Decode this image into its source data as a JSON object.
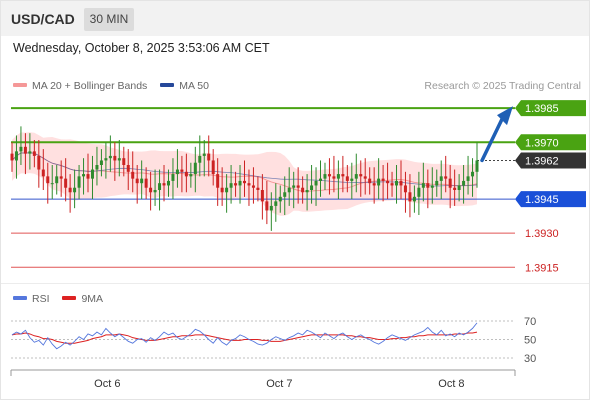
{
  "header": {
    "symbol": "USD/CAD",
    "interval": "30 MIN",
    "datetime": "Wednesday, October 8, 2025 3:53:06 AM CET"
  },
  "legend": {
    "ma20_label": "MA 20 + Bollinger Bands",
    "ma50_label": "MA 50",
    "source": "Research © 2025 Trading Central",
    "rsi_label": "RSI",
    "ma9_label": "9MA"
  },
  "colors": {
    "up": "#2e8b2e",
    "down": "#cc2222",
    "resistance": "#4aa312",
    "support_line": "#3355cc",
    "support_box": "#1a50d8",
    "minor": "#e05555",
    "price_box": "#333333",
    "bollinger": "#ffd6d6",
    "ma20": "#f59898",
    "ma50": "#26489a",
    "rsi": "#5577dd",
    "rsi_ma": "#dd2222",
    "arrow": "#1f5fb5"
  },
  "chart_data": [
    {
      "type": "candlestick",
      "title": "USD/CAD 30 MIN",
      "x_ticks": [
        "Oct 6",
        "Oct 7",
        "Oct 8"
      ],
      "current_price": 1.3962,
      "levels": [
        {
          "value": 1.3985,
          "label": "1.3985",
          "kind": "resistance"
        },
        {
          "value": 1.397,
          "label": "1.3970",
          "kind": "resistance"
        },
        {
          "value": 1.3962,
          "label": "1.3962",
          "kind": "price"
        },
        {
          "value": 1.3945,
          "label": "1.3945",
          "kind": "support"
        },
        {
          "value": 1.393,
          "label": "1.3930",
          "kind": "minor"
        },
        {
          "value": 1.3915,
          "label": "1.3915",
          "kind": "minor"
        }
      ],
      "close_series": [
        1.3962,
        1.3966,
        1.3968,
        1.3965,
        1.3966,
        1.3964,
        1.3958,
        1.3955,
        1.3952,
        1.3952,
        1.3955,
        1.3954,
        1.395,
        1.3948,
        1.395,
        1.3955,
        1.3956,
        1.3954,
        1.3958,
        1.396,
        1.3962,
        1.3963,
        1.3964,
        1.3962,
        1.3963,
        1.396,
        1.3957,
        1.3954,
        1.3952,
        1.3954,
        1.395,
        1.3948,
        1.3949,
        1.3952,
        1.3951,
        1.3953,
        1.3956,
        1.3958,
        1.3957,
        1.3955,
        1.3956,
        1.3961,
        1.3964,
        1.3965,
        1.3962,
        1.3956,
        1.395,
        1.3948,
        1.395,
        1.3952,
        1.3951,
        1.3953,
        1.3952,
        1.3951,
        1.395,
        1.3949,
        1.3944,
        1.394,
        1.3942,
        1.3944,
        1.3946,
        1.3948,
        1.395,
        1.3951,
        1.395,
        1.3948,
        1.3949,
        1.3951,
        1.3953,
        1.3954,
        1.3956,
        1.3955,
        1.3954,
        1.3956,
        1.3955,
        1.3953,
        1.3954,
        1.3956,
        1.3955,
        1.3954,
        1.3952,
        1.3951,
        1.3954,
        1.3953,
        1.3952,
        1.3951,
        1.3953,
        1.3951,
        1.3948,
        1.3944,
        1.3946,
        1.395,
        1.3952,
        1.395,
        1.3951,
        1.3953,
        1.3955,
        1.3954,
        1.395,
        1.3949,
        1.3951,
        1.3953,
        1.3955,
        1.3957,
        1.3962
      ],
      "ylim": [
        1.3905,
        1.3993
      ]
    },
    {
      "type": "line",
      "title": "RSI",
      "levels": [
        70,
        50,
        30
      ],
      "series": [
        {
          "name": "RSI",
          "values": [
            55,
            58,
            56,
            60,
            52,
            47,
            49,
            44,
            52,
            45,
            40,
            43,
            47,
            44,
            48,
            53,
            50,
            56,
            54,
            58,
            55,
            62,
            57,
            53,
            56,
            52,
            48,
            46,
            50,
            51,
            47,
            52,
            49,
            53,
            58,
            55,
            57,
            52,
            50,
            53,
            56,
            61,
            59,
            55,
            50,
            46,
            52,
            47,
            44,
            49,
            51,
            55,
            53,
            50,
            48,
            45,
            44,
            46,
            50,
            53,
            51,
            49,
            52,
            54,
            57,
            55,
            60,
            58,
            55,
            52,
            57,
            54,
            51,
            55,
            57,
            53,
            50,
            53,
            55,
            52,
            50,
            47,
            45,
            48,
            52,
            55,
            53,
            51,
            49,
            52,
            55,
            57,
            59,
            63,
            58,
            55,
            60,
            54,
            56,
            53,
            57,
            55,
            58,
            62,
            68
          ]
        },
        {
          "name": "9MA",
          "values": [
            55,
            56,
            56,
            57,
            56,
            54,
            53,
            51,
            51,
            50,
            48,
            47,
            46,
            46,
            46,
            47,
            48,
            49,
            51,
            52,
            53,
            55,
            55,
            55,
            56,
            55,
            54,
            52,
            51,
            50,
            49,
            49,
            49,
            50,
            51,
            52,
            53,
            53,
            54,
            54,
            54,
            55,
            55,
            55,
            54,
            53,
            52,
            51,
            50,
            49,
            49,
            49,
            50,
            50,
            50,
            50,
            49,
            49,
            48,
            48,
            48,
            49,
            50,
            51,
            52,
            53,
            54,
            55,
            55,
            55,
            55,
            55,
            55,
            55,
            55,
            54,
            54,
            53,
            53,
            52,
            52,
            51,
            50,
            50,
            50,
            51,
            51,
            52,
            52,
            53,
            53,
            54,
            54,
            55,
            55,
            55,
            55,
            55,
            55,
            56,
            56,
            56,
            57,
            57,
            58
          ]
        }
      ]
    }
  ]
}
